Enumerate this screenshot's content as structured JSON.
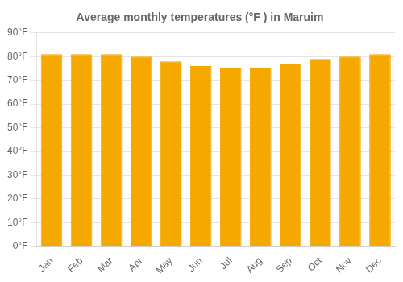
{
  "chart_data": {
    "type": "bar",
    "title": "Average monthly temperatures (°F ) in Maruim",
    "categories": [
      "Jan",
      "Feb",
      "Mar",
      "Apr",
      "May",
      "Jun",
      "Jul",
      "Aug",
      "Sep",
      "Oct",
      "Nov",
      "Dec"
    ],
    "values": [
      81,
      81,
      81,
      80,
      78,
      76,
      75,
      75,
      77,
      79,
      80,
      81
    ],
    "color": "#F5A800",
    "ylim": [
      0,
      90
    ],
    "yticks": [
      {
        "value": 0,
        "label": "0°F"
      },
      {
        "value": 10,
        "label": "10°F"
      },
      {
        "value": 20,
        "label": "20°F"
      },
      {
        "value": 30,
        "label": "30°F"
      },
      {
        "value": 40,
        "label": "40°F"
      },
      {
        "value": 50,
        "label": "50°F"
      },
      {
        "value": 60,
        "label": "60°F"
      },
      {
        "value": 70,
        "label": "70°F"
      },
      {
        "value": 80,
        "label": "80°F"
      },
      {
        "value": 90,
        "label": "90°F"
      }
    ],
    "grid": true
  }
}
